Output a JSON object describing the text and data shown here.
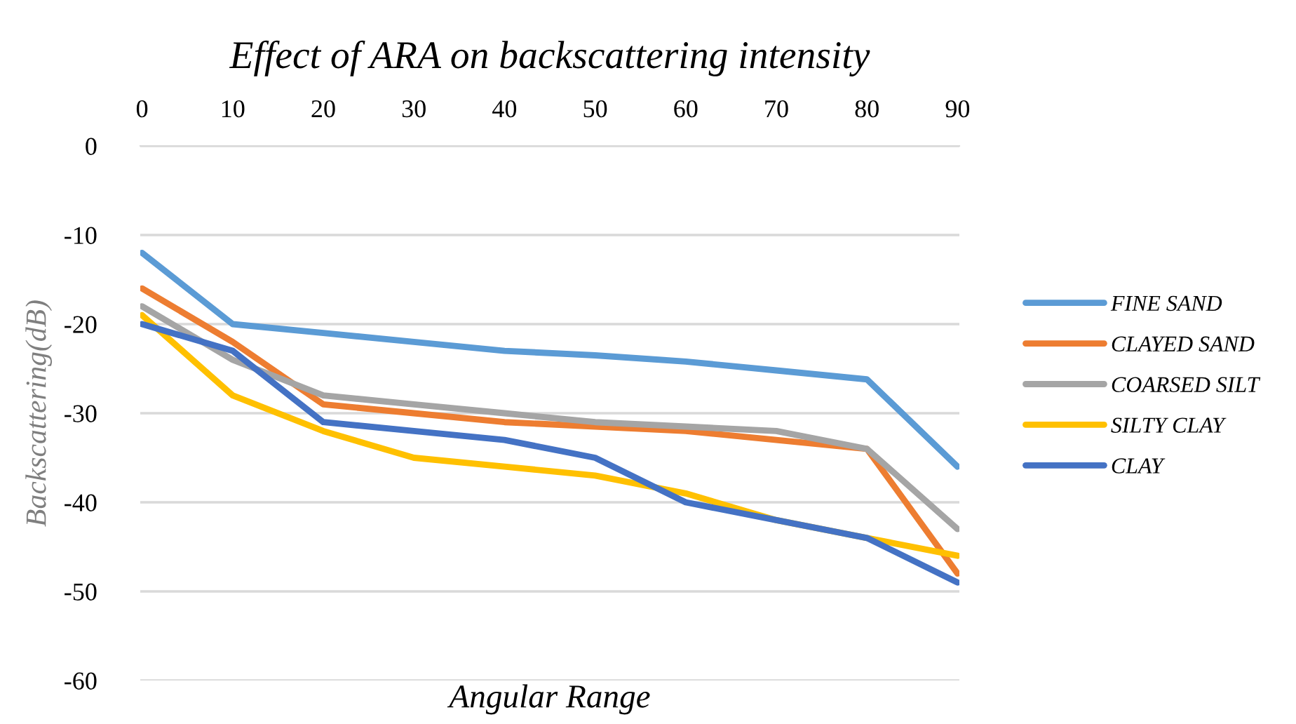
{
  "chart_data": {
    "type": "line",
    "title": "Effect of ARA on backscattering intensity",
    "xlabel": "Angular Range",
    "ylabel": "Backscattering(dB)",
    "categories": [
      "0",
      "10",
      "20",
      "30",
      "40",
      "50",
      "60",
      "70",
      "80",
      "90"
    ],
    "series": [
      {
        "name": "FINE SAND",
        "color": "#5b9bd5",
        "values": [
          -12,
          -20,
          -21,
          -22,
          -23,
          -23.5,
          -24.2,
          -25.2,
          -26.2,
          -36
        ]
      },
      {
        "name": "CLAYED SAND",
        "color": "#ed7d31",
        "values": [
          -16,
          -22,
          -29,
          -30,
          -31,
          -31.5,
          -32,
          -33,
          -34,
          -48
        ]
      },
      {
        "name": "COARSED SILT",
        "color": "#a5a5a5",
        "values": [
          -18,
          -24,
          -28,
          -29,
          -30,
          -31,
          -31.5,
          -32,
          -34,
          -43
        ]
      },
      {
        "name": "SILTY CLAY",
        "color": "#ffc000",
        "values": [
          -19,
          -28,
          -32,
          -35,
          -36,
          -37,
          -39,
          -42,
          -44,
          -46
        ]
      },
      {
        "name": "CLAY",
        "color": "#4472c4",
        "values": [
          -20,
          -23,
          -31,
          -32,
          -33,
          -35,
          -40,
          -42,
          -44,
          -49
        ]
      }
    ],
    "ylim": [
      -60,
      0
    ],
    "yticks": [
      0,
      -10,
      -20,
      -30,
      -40,
      -50,
      -60
    ],
    "grid": "y",
    "legend": "right",
    "marker": "none",
    "line_style": "solid"
  }
}
